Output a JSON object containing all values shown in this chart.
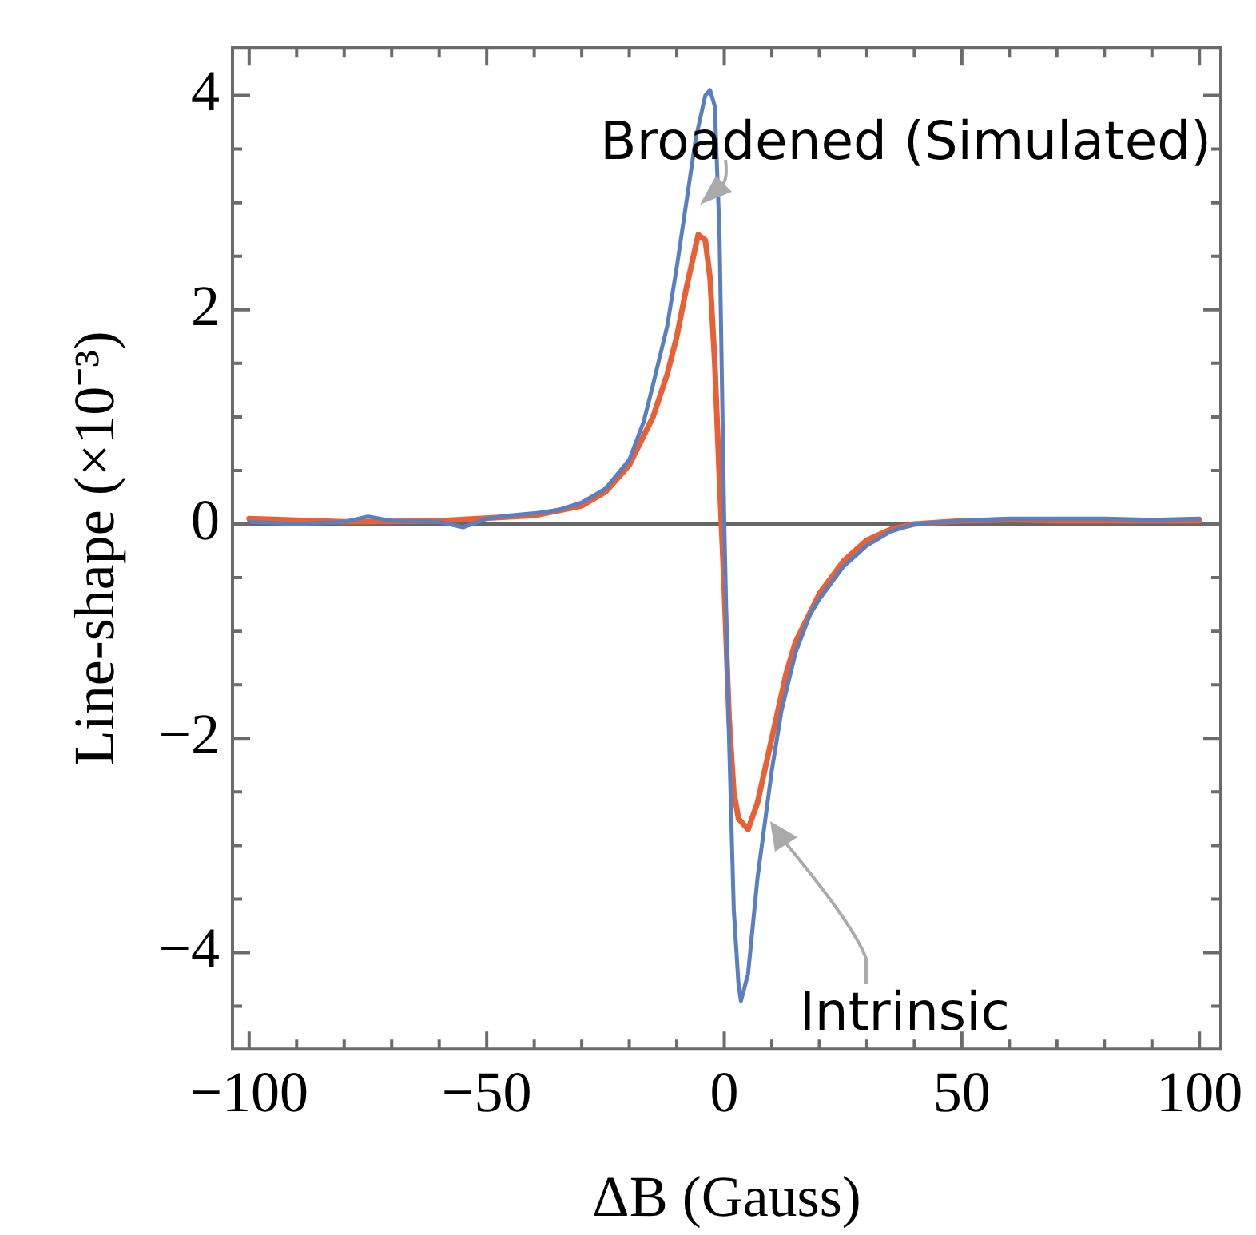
{
  "chart_data": {
    "type": "line",
    "xlabel": "ΔB (Gauss)",
    "ylabel": "Line-shape (×10⁻³)",
    "xlim": [
      -103.5,
      104.5
    ],
    "ylim": [
      -4.9,
      4.45
    ],
    "xticks": [
      {
        "value": -100,
        "label": "−100"
      },
      {
        "value": -90,
        "label": null
      },
      {
        "value": -80,
        "label": null
      },
      {
        "value": -70,
        "label": null
      },
      {
        "value": -60,
        "label": null
      },
      {
        "value": -50,
        "label": "−50"
      },
      {
        "value": -40,
        "label": null
      },
      {
        "value": -30,
        "label": null
      },
      {
        "value": -20,
        "label": null
      },
      {
        "value": -10,
        "label": null
      },
      0,
      {
        "value": 10,
        "label": null
      },
      {
        "value": 20,
        "label": null
      },
      {
        "value": 30,
        "label": null
      },
      {
        "value": 40,
        "label": null
      },
      50,
      {
        "value": 60,
        "label": null
      },
      {
        "value": 70,
        "label": null
      },
      {
        "value": 80,
        "label": null
      },
      {
        "value": 90,
        "label": null
      },
      100
    ],
    "yticks": [
      {
        "value": -4.5,
        "label": null
      },
      {
        "value": -4,
        "label": "−4"
      },
      {
        "value": -3.5,
        "label": null
      },
      {
        "value": -3,
        "label": null
      },
      {
        "value": -2.5,
        "label": null
      },
      {
        "value": -2,
        "label": "−2"
      },
      {
        "value": -1.5,
        "label": null
      },
      {
        "value": -1,
        "label": null
      },
      {
        "value": -0.5,
        "label": null
      },
      0,
      {
        "value": 0.5,
        "label": null
      },
      {
        "value": 1,
        "label": null
      },
      {
        "value": 1.5,
        "label": null
      },
      2,
      {
        "value": 2.5,
        "label": null
      },
      {
        "value": 3,
        "label": null
      },
      {
        "value": 3.5,
        "label": null
      },
      4
    ],
    "grid": false,
    "legend": false,
    "marker": "none",
    "line_style": "solid",
    "ref_lines": [
      {
        "axis": "y",
        "value": 0,
        "color": "#666666"
      }
    ],
    "annotations": [
      "Broadened (Simulated)",
      "Intrinsic"
    ],
    "series": [
      {
        "color": "#5a7fc0",
        "x": [
          -100,
          -90,
          -80,
          -75,
          -70,
          -60,
          -55,
          -50,
          -45,
          -40,
          -35,
          -30,
          -25,
          -20,
          -17,
          -15,
          -12,
          -10,
          -8,
          -6,
          -4,
          -3,
          -2,
          -1,
          0,
          1,
          2,
          3,
          3.5,
          5,
          7,
          10,
          12,
          15,
          18,
          20,
          25,
          30,
          35,
          40,
          50,
          60,
          70,
          80,
          90,
          100
        ],
        "values": [
          0.02,
          0,
          0.02,
          0.07,
          0.03,
          0.02,
          -0.03,
          0.05,
          0.08,
          0.1,
          0.13,
          0.2,
          0.33,
          0.6,
          0.95,
          1.3,
          1.85,
          2.4,
          3,
          3.6,
          4,
          4.05,
          3.9,
          2.7,
          0,
          -2,
          -3.6,
          -4.3,
          -4.45,
          -4.2,
          -3.3,
          -2.3,
          -1.75,
          -1.2,
          -0.85,
          -0.7,
          -0.4,
          -0.2,
          -0.07,
          0,
          0.03,
          0.05,
          0.05,
          0.05,
          0.04,
          0.05
        ]
      },
      {
        "color": "#ea6035",
        "x": [
          -100,
          -80,
          -60,
          -40,
          -30,
          -25,
          -20,
          -15,
          -12,
          -10,
          -8,
          -6,
          -5.5,
          -4,
          -3,
          -2,
          -1,
          0,
          1,
          2,
          3,
          5,
          7,
          10,
          13,
          15,
          20,
          25,
          30,
          35,
          40,
          50,
          60,
          70,
          80,
          90,
          100
        ],
        "values": [
          0.05,
          0.02,
          0.03,
          0.08,
          0.17,
          0.3,
          0.55,
          1,
          1.4,
          1.75,
          2.2,
          2.6,
          2.7,
          2.65,
          2.3,
          1.5,
          0.4,
          -0.6,
          -1.8,
          -2.5,
          -2.75,
          -2.85,
          -2.6,
          -2,
          -1.4,
          -1.1,
          -0.65,
          -0.35,
          -0.15,
          -0.05,
          0,
          0.03,
          0.04,
          0.03,
          0.03,
          0.03,
          0.03
        ]
      }
    ]
  }
}
